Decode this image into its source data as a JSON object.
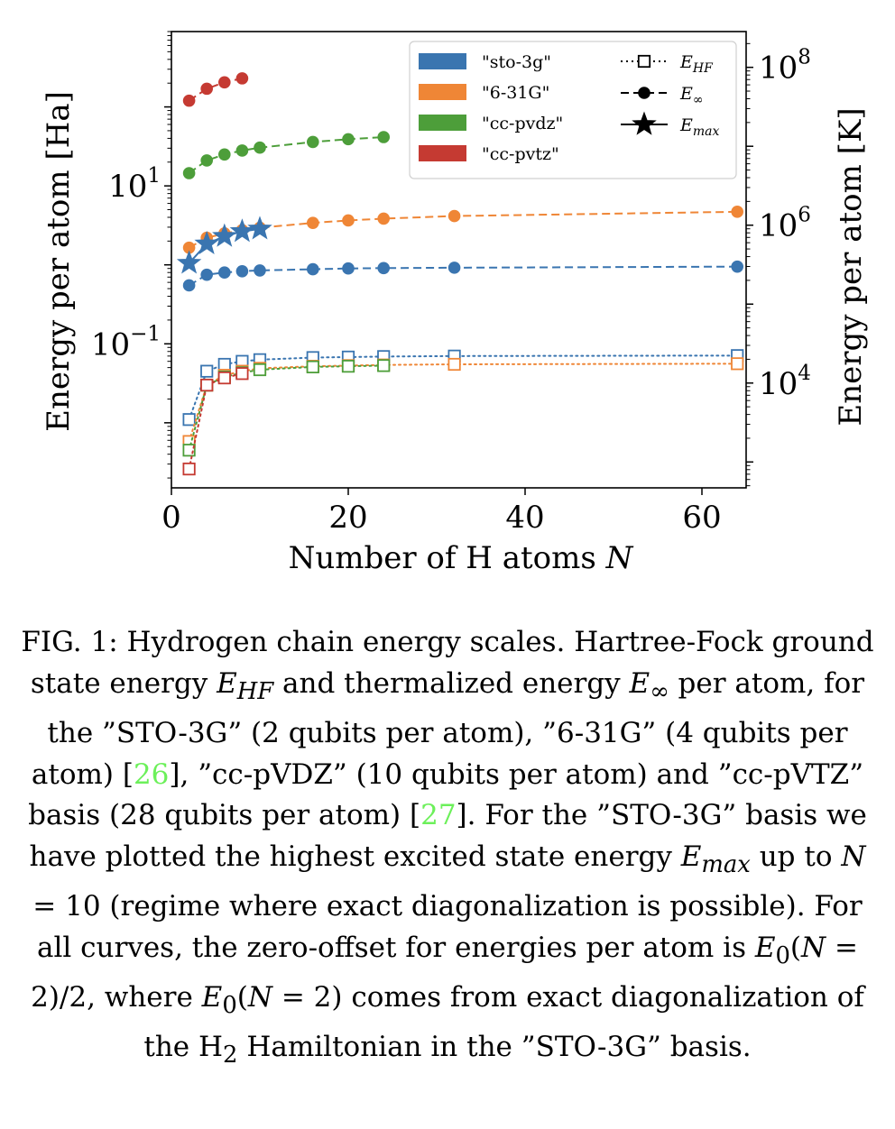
{
  "chart_data": {
    "type": "line",
    "xlabel": "Number of H atoms N",
    "ylabel": "Energy per atom [Ha]",
    "y2label": "Energy per atom [K]",
    "xlim": [
      0,
      65
    ],
    "ylim": [
      0.0015,
      900
    ],
    "yscale": "log",
    "y2lim": [
      470,
      284000000
    ],
    "y2scale": "log",
    "x_ticks": [
      "0",
      "20",
      "40",
      "60"
    ],
    "y_ticks": [
      {
        "value": 10,
        "label": "10",
        "exp": "1"
      },
      {
        "value": 0.1,
        "label": "10",
        "exp": "−1"
      }
    ],
    "y2_ticks": [
      {
        "value": 10000,
        "label": "10",
        "exp": "4"
      },
      {
        "value": 1000000,
        "label": "10",
        "exp": "6"
      },
      {
        "value": 100000000,
        "label": "10",
        "exp": "8"
      }
    ],
    "legend_position": "top-right",
    "legend_bases": [
      {
        "label": "\"sto-3g\"",
        "color": "#3a75b0"
      },
      {
        "label": "\"6-31G\"",
        "color": "#ef8636"
      },
      {
        "label": "\"cc-pvdz\"",
        "color": "#4d9e3a"
      },
      {
        "label": "\"cc-pvtz\"",
        "color": "#c53a32"
      }
    ],
    "legend_styles": [
      {
        "label": "E",
        "sub": "HF",
        "style": "dotted",
        "marker": "open-square"
      },
      {
        "label": "E",
        "sub": "∞",
        "style": "dashed",
        "marker": "filled-circle"
      },
      {
        "label": "E",
        "sub": "max",
        "style": "solid",
        "marker": "star"
      }
    ],
    "series": [
      {
        "basis": "\"sto-3g\"",
        "quantity": "E_HF",
        "color": "#3a75b0",
        "style": "dotted",
        "marker": "open-square",
        "x": [
          2,
          4,
          6,
          8,
          10,
          16,
          20,
          24,
          32,
          64
        ],
        "y": [
          0.011,
          0.045,
          0.055,
          0.06,
          0.063,
          0.067,
          0.068,
          0.069,
          0.07,
          0.071
        ]
      },
      {
        "basis": "\"6-31G\"",
        "quantity": "E_HF",
        "color": "#ef8636",
        "style": "dotted",
        "marker": "open-square",
        "x": [
          2,
          4,
          6,
          8,
          10,
          16,
          20,
          24,
          32,
          64
        ],
        "y": [
          0.0058,
          0.03,
          0.04,
          0.045,
          0.049,
          0.052,
          0.053,
          0.054,
          0.055,
          0.056
        ]
      },
      {
        "basis": "\"cc-pvdz\"",
        "quantity": "E_HF",
        "color": "#4d9e3a",
        "style": "dotted",
        "marker": "open-square",
        "x": [
          2,
          4,
          6,
          8,
          10,
          16,
          20,
          24
        ],
        "y": [
          0.0045,
          0.03,
          0.038,
          0.043,
          0.047,
          0.051,
          0.052,
          0.053
        ]
      },
      {
        "basis": "\"cc-pvtz\"",
        "quantity": "E_HF",
        "color": "#c53a32",
        "style": "dotted",
        "marker": "open-square",
        "x": [
          2,
          4,
          6,
          8
        ],
        "y": [
          0.0026,
          0.03,
          0.037,
          0.042
        ]
      },
      {
        "basis": "\"sto-3g\"",
        "quantity": "E_inf",
        "color": "#3a75b0",
        "style": "dashed",
        "marker": "filled-circle",
        "x": [
          2,
          4,
          6,
          8,
          10,
          16,
          20,
          24,
          32,
          64
        ],
        "y": [
          0.55,
          0.75,
          0.8,
          0.83,
          0.85,
          0.88,
          0.9,
          0.91,
          0.92,
          0.95
        ]
      },
      {
        "basis": "\"6-31G\"",
        "quantity": "E_inf",
        "color": "#ef8636",
        "style": "dashed",
        "marker": "filled-circle",
        "x": [
          2,
          4,
          6,
          8,
          10,
          16,
          20,
          24,
          32,
          64
        ],
        "y": [
          1.65,
          2.2,
          2.5,
          2.75,
          2.95,
          3.4,
          3.65,
          3.85,
          4.15,
          4.7
        ]
      },
      {
        "basis": "\"cc-pvdz\"",
        "quantity": "E_inf",
        "color": "#4d9e3a",
        "style": "dashed",
        "marker": "filled-circle",
        "x": [
          2,
          4,
          6,
          8,
          10,
          16,
          20,
          24
        ],
        "y": [
          14.5,
          21,
          25,
          28,
          30.5,
          36,
          39,
          41.5
        ]
      },
      {
        "basis": "\"cc-pvtz\"",
        "quantity": "E_inf",
        "color": "#c53a32",
        "style": "dashed",
        "marker": "filled-circle",
        "x": [
          2,
          4,
          6,
          8
        ],
        "y": [
          120,
          170,
          205,
          230
        ]
      },
      {
        "basis": "\"sto-3g\"",
        "quantity": "E_max",
        "color": "#3a75b0",
        "style": "solid",
        "marker": "star",
        "x": [
          2,
          4,
          6,
          8,
          10
        ],
        "y": [
          1.05,
          1.85,
          2.3,
          2.65,
          2.85
        ]
      }
    ]
  },
  "caption": {
    "p1": "FIG. 1: Hydrogen chain energy scales. Hartree-Fock ground state energy ",
    "ehf_base": "E",
    "ehf_sub": "HF",
    "p2": " and thermalized energy ",
    "einf_base": "E",
    "einf_sub": "∞",
    "p3": " per atom, for the ”STO-3G” (2 qubits per atom), ”6-31G” (4 qubits per atom)  [",
    "ref1": "26",
    "p4": "], ”cc-pVDZ” (10 qubits per atom) and ”cc-pVTZ” basis (28 qubits per atom)  [",
    "ref2": "27",
    "p5": "]. For the ”STO-3G” basis we have plotted the highest excited state energy ",
    "emax_base": "E",
    "emax_sub": "max",
    "p6": " up to ",
    "n_sym": "N",
    "p7": " = 10 (regime where exact diagonalization is possible). For all curves, the zero-offset for energies per atom is ",
    "e0a_base": "E",
    "e0a_sub": "0",
    "p8": "(",
    "n_sym2": "N",
    "p9": " = 2)/2, where ",
    "e0b_base": "E",
    "e0b_sub": "0",
    "p10": "(",
    "n_sym3": "N",
    "p11": " = 2) comes from exact diagonalization of the H",
    "h2_sub": "2",
    "p12": " Hamiltonian in the ”STO-3G” basis."
  }
}
